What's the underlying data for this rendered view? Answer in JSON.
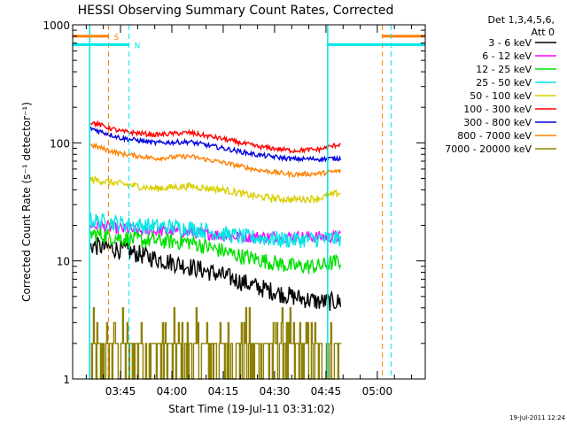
{
  "chart_data": {
    "type": "line",
    "title": "HESSI Observing Summary Count Rates, Corrected",
    "xlabel": "Start Time (19-Jul-11 03:31:02)",
    "ylabel": "Corrected Count Rate (s⁻¹ detector⁻¹)",
    "y_scale": "log",
    "ylim": [
      1,
      1000
    ],
    "y_ticks": [
      "1",
      "10",
      "100",
      "1000"
    ],
    "x_ticks": [
      "03:45",
      "04:00",
      "04:15",
      "04:30",
      "04:45",
      "05:00"
    ],
    "x_tick_minutes": [
      45,
      60,
      75,
      90,
      105,
      120
    ],
    "xlim_minutes": [
      31.03,
      134
    ],
    "timestamp": "19-Jul-2011 12:24",
    "legend": {
      "placement": "right",
      "header": [
        "Det 1,3,4,5,6,",
        "Att 0"
      ]
    },
    "markers": [
      {
        "label": "S",
        "color": "#ff8000",
        "lines_minutes": [
          41.5,
          121.5
        ],
        "bar_until_minutes": 41.5,
        "bar_from_minutes": 121.5,
        "bar_value": 800
      },
      {
        "label": "N",
        "color": "#00e5e5",
        "lines_minutes": [
          47.5,
          124
        ],
        "bar_until_minutes": 47.5,
        "bar_from_minutes": 105.5,
        "bar_value": 680
      }
    ],
    "night_boundaries_minutes": [
      36,
      105.5
    ],
    "series": [
      {
        "name": "3 - 6 keV",
        "color": "#000000",
        "start": 36.3,
        "end": 109.5,
        "noise": 0.08,
        "points": [
          [
            36.3,
            13.5
          ],
          [
            45,
            12.5
          ],
          [
            55,
            10.5
          ],
          [
            65,
            9
          ],
          [
            75,
            7.5
          ],
          [
            85,
            6
          ],
          [
            95,
            5
          ],
          [
            103,
            4.5
          ],
          [
            109.5,
            4.5
          ]
        ]
      },
      {
        "name": "6 - 12 keV",
        "color": "#ff00ff",
        "start": 36.3,
        "end": 109.5,
        "noise": 0.05,
        "points": [
          [
            36.3,
            20
          ],
          [
            50,
            18
          ],
          [
            65,
            17.5
          ],
          [
            80,
            16
          ],
          [
            95,
            16
          ],
          [
            109.5,
            16
          ]
        ]
      },
      {
        "name": "12 - 25 keV",
        "color": "#00e000",
        "start": 36.3,
        "end": 109.5,
        "noise": 0.07,
        "points": [
          [
            36.3,
            17
          ],
          [
            50,
            15
          ],
          [
            65,
            14.5
          ],
          [
            80,
            11
          ],
          [
            95,
            9
          ],
          [
            103,
            9
          ],
          [
            109.5,
            10
          ]
        ]
      },
      {
        "name": "25 - 50 keV",
        "color": "#00e5e5",
        "start": 36.3,
        "end": 109.5,
        "noise": 0.07,
        "points": [
          [
            36.3,
            22
          ],
          [
            50,
            20
          ],
          [
            65,
            19
          ],
          [
            80,
            16
          ],
          [
            95,
            15
          ],
          [
            109.5,
            15.5
          ]
        ]
      },
      {
        "name": "50 - 100 keV",
        "color": "#d8d000",
        "start": 36.3,
        "end": 109.5,
        "noise": 0.03,
        "points": [
          [
            36.3,
            49
          ],
          [
            45,
            45
          ],
          [
            55,
            41
          ],
          [
            65,
            43
          ],
          [
            75,
            40
          ],
          [
            85,
            35
          ],
          [
            95,
            33
          ],
          [
            103,
            34
          ],
          [
            109.5,
            38
          ]
        ]
      },
      {
        "name": "100 - 300 keV",
        "color": "#ff0000",
        "start": 36.3,
        "end": 109.5,
        "noise": 0.02,
        "points": [
          [
            36.3,
            150
          ],
          [
            45,
            125
          ],
          [
            55,
            117
          ],
          [
            65,
            122
          ],
          [
            75,
            108
          ],
          [
            85,
            93
          ],
          [
            95,
            86
          ],
          [
            103,
            88
          ],
          [
            109.5,
            98
          ]
        ]
      },
      {
        "name": "300 - 800 keV",
        "color": "#0000e0",
        "start": 36.3,
        "end": 109.5,
        "noise": 0.02,
        "points": [
          [
            36.3,
            133
          ],
          [
            45,
            110
          ],
          [
            55,
            100
          ],
          [
            65,
            102
          ],
          [
            75,
            90
          ],
          [
            85,
            79
          ],
          [
            95,
            73
          ],
          [
            103,
            73
          ],
          [
            109.5,
            74
          ]
        ]
      },
      {
        "name": "800 - 7000 keV",
        "color": "#ff8000",
        "start": 36.3,
        "end": 109.5,
        "noise": 0.02,
        "points": [
          [
            36.3,
            96
          ],
          [
            45,
            81
          ],
          [
            55,
            74
          ],
          [
            65,
            77
          ],
          [
            75,
            68
          ],
          [
            85,
            59
          ],
          [
            95,
            54
          ],
          [
            103,
            55
          ],
          [
            109.5,
            58
          ]
        ]
      },
      {
        "name": "7000 - 20000 keV",
        "color": "#8c8000",
        "start": 36.3,
        "end": 109.5,
        "noise": 0.0,
        "discrete": true,
        "levels": [
          1,
          2,
          3,
          4
        ],
        "points": [
          [
            36.3,
            2
          ],
          [
            109.5,
            2
          ]
        ]
      }
    ]
  }
}
